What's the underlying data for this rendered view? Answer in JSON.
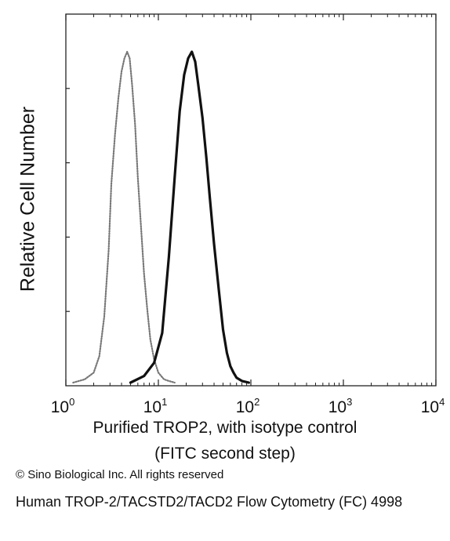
{
  "chart_data": {
    "type": "line",
    "title": "",
    "xlabel_line1": "Purified TROP2, with isotype control",
    "xlabel_line2": "(FITC second step)",
    "ylabel": "Relative Cell Number",
    "x_scale": "log",
    "xlim": [
      1,
      10000
    ],
    "ylim": [
      0,
      1
    ],
    "x_ticks": [
      {
        "base": "10",
        "exp": "0"
      },
      {
        "base": "10",
        "exp": "1"
      },
      {
        "base": "10",
        "exp": "2"
      },
      {
        "base": "10",
        "exp": "3"
      },
      {
        "base": "10",
        "exp": "4"
      }
    ],
    "grid": false,
    "legend": "none",
    "series": [
      {
        "style": "dotted",
        "color": "#777777",
        "x": [
          1.2,
          1.6,
          2.0,
          2.3,
          2.6,
          2.9,
          3.1,
          3.4,
          3.7,
          4.0,
          4.3,
          4.6,
          4.9,
          5.2,
          5.6,
          6.0,
          6.5,
          7.0,
          7.6,
          8.2,
          9.0,
          10.0,
          11.5,
          13.0,
          15.0
        ],
        "y": [
          0.0,
          0.01,
          0.03,
          0.08,
          0.2,
          0.4,
          0.6,
          0.75,
          0.86,
          0.94,
          0.98,
          1.0,
          0.98,
          0.9,
          0.78,
          0.62,
          0.47,
          0.33,
          0.22,
          0.13,
          0.07,
          0.03,
          0.01,
          0.005,
          0.0
        ]
      },
      {
        "style": "solid",
        "color": "#111111",
        "x": [
          5.0,
          7.0,
          9.0,
          11.0,
          13.0,
          15.0,
          17.0,
          19.0,
          21.0,
          23.0,
          25.0,
          27.0,
          30.0,
          33.0,
          36.0,
          40.0,
          45.0,
          50.0,
          55.0,
          60.0,
          65.0,
          70.0,
          80.0,
          95.0
        ],
        "y": [
          0.0,
          0.02,
          0.06,
          0.15,
          0.38,
          0.62,
          0.82,
          0.93,
          0.98,
          1.0,
          0.97,
          0.9,
          0.8,
          0.68,
          0.56,
          0.42,
          0.28,
          0.16,
          0.09,
          0.05,
          0.03,
          0.015,
          0.005,
          0.0
        ]
      }
    ]
  },
  "copyright": "© Sino Biological Inc. All rights reserved",
  "caption": "Human TROP-2/TACSTD2/TACD2 Flow Cytometry (FC) 4998"
}
